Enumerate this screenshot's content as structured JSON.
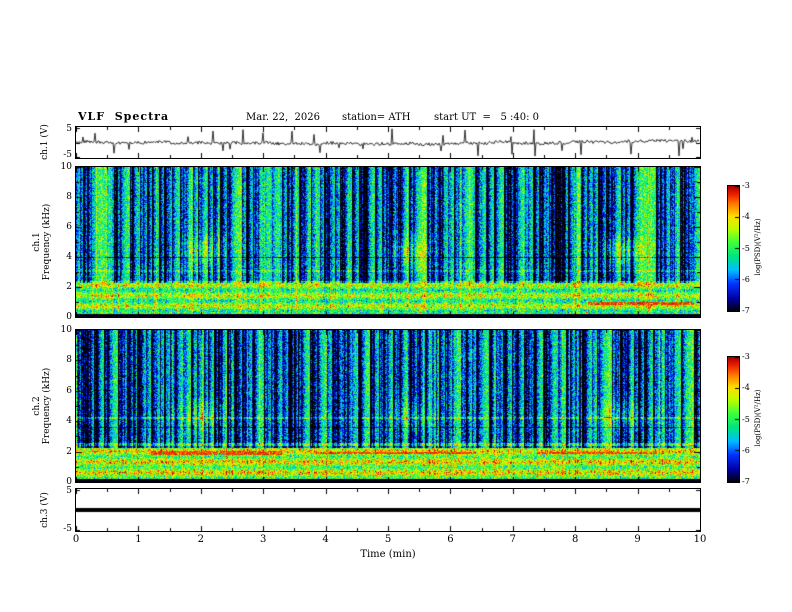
{
  "header": {
    "title": "VLF  Spectra",
    "date": "Mar. 22,  2026",
    "station": "station= ATH",
    "start_ut": "start UT  =   5 :40: 0"
  },
  "axes": {
    "time": {
      "label": "Time  (min)",
      "ticks": [
        "0",
        "1",
        "2",
        "3",
        "4",
        "5",
        "6",
        "7",
        "8",
        "9",
        "10"
      ],
      "range": [
        0,
        10
      ]
    },
    "ch1_voltage": {
      "label": "ch.1 (V)",
      "ticks": [
        "5",
        "-5"
      ],
      "range": [
        -5,
        5
      ]
    },
    "ch1_spec": {
      "channel": "ch.1",
      "label": "Frequency  (kHz)",
      "ticks": [
        "10",
        "8",
        "6",
        "4",
        "2",
        "0"
      ],
      "range": [
        0,
        10
      ]
    },
    "ch2_spec": {
      "channel": "ch.2",
      "label": "Frequency  (kHz)",
      "ticks": [
        "10",
        "8",
        "6",
        "4",
        "2",
        "0"
      ],
      "range": [
        0,
        10
      ]
    },
    "ch3_voltage": {
      "label": "ch.3 (V)",
      "ticks": [
        "5",
        "-5"
      ],
      "range": [
        -5,
        5
      ]
    }
  },
  "colorbars": [
    {
      "label": "log(PSD)(V²/Hz)",
      "ticks": [
        "-3",
        "-4",
        "-5",
        "-6",
        "-7"
      ],
      "range": [
        -7,
        -3
      ]
    },
    {
      "label": "log(PSD)(V²/Hz)",
      "ticks": [
        "-3",
        "-4",
        "-5",
        "-6",
        "-7"
      ],
      "range": [
        -7,
        -3
      ]
    }
  ],
  "palette": {
    "frame": "#000000",
    "background": "#ffffff",
    "colormap": "jet-like: black, blue, cyan, green, yellow, orange, red"
  },
  "chart_data": [
    {
      "type": "line",
      "name": "ch1-voltage-waveform",
      "xlim": [
        0,
        10
      ],
      "ylim": [
        -5,
        5
      ],
      "xlabel": "Time (min)",
      "ylabel": "ch.1 (V)",
      "summary": "continuous broadband noise trace near 0 V with frequent impulsive spikes reaching about +/-4 V across the whole 10 min record"
    },
    {
      "type": "heatmap",
      "name": "ch1-spectrogram",
      "xlim": [
        0,
        10
      ],
      "ylim": [
        0,
        10
      ],
      "xlabel": "Time (min)",
      "ylabel": "Frequency (kHz)",
      "zlabel": "log(PSD)(V²/Hz)",
      "zlim": [
        -7,
        -3
      ],
      "features": [
        "dense vertical blue dropout striations above ~2.5 kHz",
        "speckled green-yellow background",
        "bright emission band near 2.3 kHz",
        "black band below ~0.2 kHz",
        "yellow enhancement patches near 4.5 kHz at t = 2.1, 5.4 and 8.8 min",
        "orange-red segment near 1 kHz for t = 8.3 to 10 min"
      ]
    },
    {
      "type": "heatmap",
      "name": "ch2-spectrogram",
      "xlim": [
        0,
        10
      ],
      "ylim": [
        0,
        10
      ],
      "xlabel": "Time (min)",
      "ylabel": "Frequency (kHz)",
      "zlabel": "log(PSD)(V²/Hz)",
      "zlim": [
        -7,
        -3
      ],
      "features": [
        "dense vertical blue striations above ~2.6 kHz",
        "strong yellow-green band from ~0.3 to 2.6 kHz",
        "red-brown horizontal segments near 2 kHz between t = 1.2-6.4 and 7.4-9.3 min",
        "black band below ~0.2 kHz",
        "yellow patches near 4.4 kHz at t = 2.1, 5.4 and 8.8 min"
      ]
    },
    {
      "type": "line",
      "name": "ch3-voltage-waveform",
      "xlim": [
        0,
        10
      ],
      "ylim": [
        -5,
        5
      ],
      "xlabel": "Time (min)",
      "ylabel": "ch.3 (V)",
      "summary": "flat heavy black trace at 0 V across the full record (channel inactive)"
    }
  ]
}
